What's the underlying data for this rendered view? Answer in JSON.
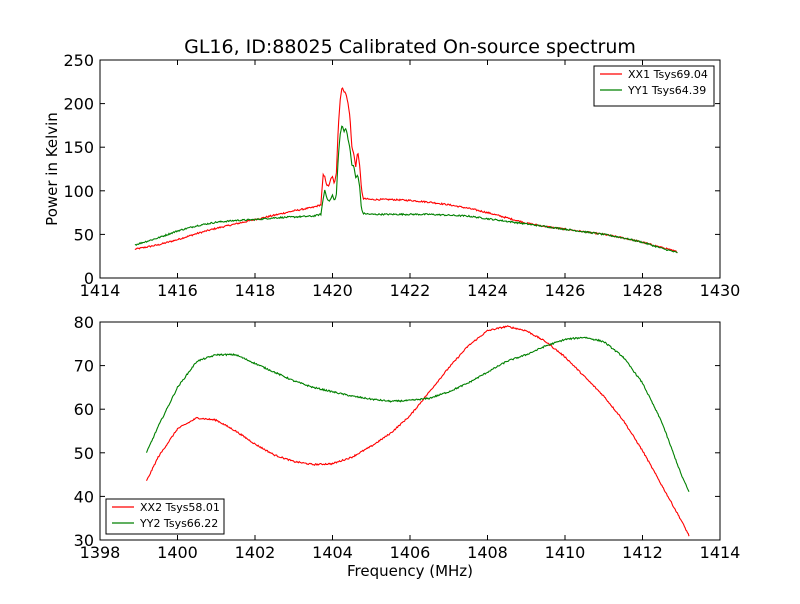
{
  "figure": {
    "title": "GL16, ID:88025 Calibrated On-source spectrum",
    "xlabel": "Frequency (MHz)"
  },
  "chart_data": [
    {
      "type": "line",
      "title": "GL16, ID:88025 Calibrated On-source spectrum",
      "xlabel": "",
      "ylabel": "Power in Kelvin",
      "xlim": [
        1414,
        1430
      ],
      "ylim": [
        0,
        250
      ],
      "xticks": [
        1414,
        1416,
        1418,
        1420,
        1422,
        1424,
        1426,
        1428,
        1430
      ],
      "yticks": [
        0,
        50,
        100,
        150,
        200,
        250
      ],
      "grid": false,
      "legend_position": "top-right",
      "series": [
        {
          "name": "XX1 Tsys69.04",
          "color": "#ff0000",
          "points": [
            [
              1414.9,
              33
            ],
            [
              1415.5,
              38
            ],
            [
              1416,
              44
            ],
            [
              1416.5,
              51
            ],
            [
              1417,
              57
            ],
            [
              1417.5,
              62
            ],
            [
              1418,
              67
            ],
            [
              1418.5,
              72
            ],
            [
              1419,
              77
            ],
            [
              1419.5,
              81
            ],
            [
              1419.7,
              84
            ],
            [
              1419.72,
              96
            ],
            [
              1419.76,
              118
            ],
            [
              1419.8,
              116
            ],
            [
              1419.85,
              107
            ],
            [
              1419.9,
              105
            ],
            [
              1419.95,
              113
            ],
            [
              1420,
              116
            ],
            [
              1420.05,
              108
            ],
            [
              1420.1,
              120
            ],
            [
              1420.15,
              175
            ],
            [
              1420.2,
              205
            ],
            [
              1420.25,
              220
            ],
            [
              1420.3,
              213
            ],
            [
              1420.35,
              212
            ],
            [
              1420.4,
              200
            ],
            [
              1420.45,
              185
            ],
            [
              1420.5,
              150
            ],
            [
              1420.55,
              142
            ],
            [
              1420.6,
              128
            ],
            [
              1420.65,
              145
            ],
            [
              1420.7,
              130
            ],
            [
              1420.75,
              100
            ],
            [
              1420.8,
              91
            ],
            [
              1421,
              90
            ],
            [
              1421.5,
              90
            ],
            [
              1422,
              89
            ],
            [
              1422.5,
              87
            ],
            [
              1423,
              84
            ],
            [
              1423.5,
              80
            ],
            [
              1424,
              75
            ],
            [
              1424.5,
              69
            ],
            [
              1425,
              63
            ],
            [
              1425.5,
              59
            ],
            [
              1426,
              56
            ],
            [
              1426.5,
              53
            ],
            [
              1427,
              50
            ],
            [
              1427.5,
              46
            ],
            [
              1428,
              41
            ],
            [
              1428.5,
              35
            ],
            [
              1428.9,
              30
            ]
          ]
        },
        {
          "name": "YY1 Tsys64.39",
          "color": "#008000",
          "points": [
            [
              1414.9,
              38
            ],
            [
              1415.5,
              46
            ],
            [
              1416,
              54
            ],
            [
              1416.5,
              60
            ],
            [
              1417,
              64
            ],
            [
              1417.5,
              66
            ],
            [
              1418,
              67
            ],
            [
              1418.5,
              69
            ],
            [
              1419,
              70
            ],
            [
              1419.5,
              71
            ],
            [
              1419.7,
              73
            ],
            [
              1419.75,
              88
            ],
            [
              1419.8,
              101
            ],
            [
              1419.85,
              93
            ],
            [
              1419.9,
              88
            ],
            [
              1419.95,
              90
            ],
            [
              1420,
              95
            ],
            [
              1420.05,
              88
            ],
            [
              1420.1,
              96
            ],
            [
              1420.15,
              140
            ],
            [
              1420.2,
              165
            ],
            [
              1420.25,
              176
            ],
            [
              1420.3,
              168
            ],
            [
              1420.35,
              172
            ],
            [
              1420.4,
              160
            ],
            [
              1420.45,
              148
            ],
            [
              1420.5,
              130
            ],
            [
              1420.55,
              128
            ],
            [
              1420.6,
              115
            ],
            [
              1420.65,
              118
            ],
            [
              1420.7,
              105
            ],
            [
              1420.75,
              78
            ],
            [
              1420.8,
              74
            ],
            [
              1421,
              73
            ],
            [
              1421.5,
              73
            ],
            [
              1422,
              73
            ],
            [
              1422.5,
              73
            ],
            [
              1423,
              72
            ],
            [
              1423.5,
              71
            ],
            [
              1424,
              68
            ],
            [
              1424.5,
              65
            ],
            [
              1425,
              62
            ],
            [
              1425.5,
              59
            ],
            [
              1426,
              56
            ],
            [
              1426.5,
              53
            ],
            [
              1427,
              50
            ],
            [
              1427.5,
              46
            ],
            [
              1428,
              41
            ],
            [
              1428.5,
              34
            ],
            [
              1428.9,
              29
            ]
          ]
        }
      ]
    },
    {
      "type": "line",
      "title": "",
      "xlabel": "Frequency (MHz)",
      "ylabel": "",
      "xlim": [
        1398,
        1414
      ],
      "ylim": [
        30,
        80
      ],
      "xticks": [
        1398,
        1400,
        1402,
        1404,
        1406,
        1408,
        1410,
        1412,
        1414
      ],
      "yticks": [
        30,
        40,
        50,
        60,
        70,
        80
      ],
      "grid": false,
      "legend_position": "bottom-left",
      "series": [
        {
          "name": "XX2 Tsys58.01",
          "color": "#ff0000",
          "points": [
            [
              1399.2,
              43.5
            ],
            [
              1399.5,
              49
            ],
            [
              1400,
              55.5
            ],
            [
              1400.5,
              58
            ],
            [
              1401,
              57.5
            ],
            [
              1401.5,
              55
            ],
            [
              1402,
              52
            ],
            [
              1402.5,
              49.5
            ],
            [
              1403,
              48
            ],
            [
              1403.5,
              47.3
            ],
            [
              1404,
              47.5
            ],
            [
              1404.5,
              49
            ],
            [
              1405,
              51.5
            ],
            [
              1405.5,
              54.5
            ],
            [
              1406,
              58.5
            ],
            [
              1406.5,
              64
            ],
            [
              1407,
              69.5
            ],
            [
              1407.5,
              74.5
            ],
            [
              1408,
              78
            ],
            [
              1408.5,
              79
            ],
            [
              1409,
              78
            ],
            [
              1409.5,
              75.5
            ],
            [
              1410,
              72
            ],
            [
              1410.5,
              67.5
            ],
            [
              1411,
              63
            ],
            [
              1411.5,
              57.5
            ],
            [
              1412,
              50.5
            ],
            [
              1412.5,
              42.5
            ],
            [
              1413,
              34.5
            ],
            [
              1413.2,
              31
            ]
          ]
        },
        {
          "name": "YY2 Tsys66.22",
          "color": "#008000",
          "points": [
            [
              1399.2,
              50
            ],
            [
              1399.5,
              56
            ],
            [
              1400,
              65
            ],
            [
              1400.5,
              71
            ],
            [
              1401,
              72.5
            ],
            [
              1401.5,
              72.5
            ],
            [
              1402,
              70.5
            ],
            [
              1402.5,
              68.5
            ],
            [
              1403,
              66.5
            ],
            [
              1403.5,
              65
            ],
            [
              1404,
              64
            ],
            [
              1404.5,
              63
            ],
            [
              1405,
              62.3
            ],
            [
              1405.5,
              61.8
            ],
            [
              1406,
              62
            ],
            [
              1406.5,
              62.5
            ],
            [
              1407,
              64
            ],
            [
              1407.5,
              66
            ],
            [
              1408,
              68.5
            ],
            [
              1408.5,
              71
            ],
            [
              1409,
              72.5
            ],
            [
              1409.5,
              74.5
            ],
            [
              1410,
              76
            ],
            [
              1410.5,
              76.5
            ],
            [
              1411,
              75.5
            ],
            [
              1411.5,
              72
            ],
            [
              1412,
              66
            ],
            [
              1412.5,
              57
            ],
            [
              1413,
              45
            ],
            [
              1413.2,
              41
            ]
          ]
        }
      ]
    }
  ]
}
